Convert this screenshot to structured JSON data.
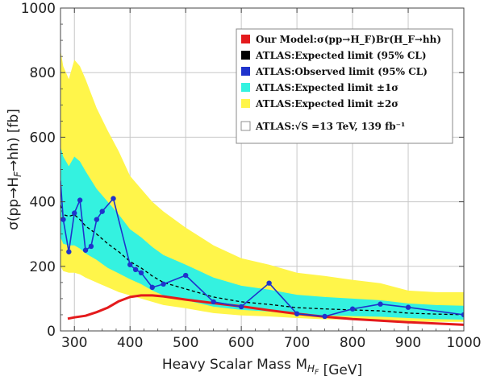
{
  "chart_data": {
    "type": "line",
    "title": "",
    "xlabel": "Heavy Scalar Mass M_{H_F} [GeV]",
    "ylabel": "σ(pp→H_F→hh) [fb]",
    "xlim": [
      275,
      1000
    ],
    "ylim": [
      0,
      1000
    ],
    "xticks": [
      300,
      400,
      500,
      600,
      700,
      800,
      900,
      1000
    ],
    "yticks": [
      0,
      200,
      400,
      600,
      800,
      1000
    ],
    "grid": true,
    "legend_position": "top-right",
    "colors": {
      "model": "#e41a1c",
      "expected": "#000000",
      "observed": "#1f33cc",
      "band1": "#34f2e0",
      "band2": "#fff54a",
      "grid": "#c8c8c8"
    },
    "legend": [
      {
        "swatch": "#e41a1c",
        "label": "Our Model:σ(pp→H_F)Br(H_F→hh)"
      },
      {
        "swatch": "#000000",
        "label": "ATLAS:Expected limit (95% CL)"
      },
      {
        "swatch": "#1f33cc",
        "label": "ATLAS:Observed limit (95% CL)"
      },
      {
        "swatch": "#34f2e0",
        "label": "ATLAS:Expected limit ±1σ"
      },
      {
        "swatch": "#fff54a",
        "label": "ATLAS:Expected limit ±2σ"
      },
      {
        "swatch": "#ffffff",
        "label": "ATLAS:√S =13 TeV, 139 fb⁻¹"
      }
    ],
    "series": [
      {
        "name": "Our Model:σ(pp→H_F)Br(H_F→hh)",
        "style": "solid",
        "x": [
          288,
          300,
          320,
          340,
          360,
          380,
          400,
          420,
          440,
          460,
          500,
          550,
          600,
          650,
          700,
          750,
          800,
          850,
          900,
          950,
          1000
        ],
        "y": [
          38,
          42,
          47,
          58,
          72,
          92,
          105,
          110,
          110,
          107,
          97,
          86,
          76,
          64,
          53,
          44,
          37,
          32,
          27,
          23,
          19
        ]
      },
      {
        "name": "ATLAS:Expected limit (95% CL)",
        "style": "dashed",
        "x": [
          275,
          280,
          290,
          300,
          310,
          320,
          340,
          360,
          380,
          400,
          420,
          440,
          460,
          500,
          550,
          600,
          650,
          700,
          750,
          800,
          850,
          900,
          950,
          1000
        ],
        "y": [
          390,
          360,
          355,
          360,
          345,
          325,
          300,
          270,
          245,
          215,
          195,
          170,
          150,
          130,
          105,
          90,
          82,
          72,
          68,
          65,
          62,
          55,
          52,
          50
        ]
      },
      {
        "name": "ATLAS:Observed limit (95% CL)",
        "style": "solid-markers",
        "x": [
          275,
          280,
          290,
          300,
          310,
          320,
          330,
          340,
          350,
          370,
          400,
          410,
          420,
          440,
          460,
          500,
          550,
          600,
          650,
          700,
          750,
          800,
          850,
          900,
          1000
        ],
        "y": [
          465,
          345,
          245,
          365,
          405,
          250,
          262,
          345,
          370,
          410,
          205,
          190,
          180,
          135,
          145,
          172,
          90,
          75,
          148,
          53,
          45,
          68,
          83,
          73,
          50
        ]
      }
    ],
    "bands": [
      {
        "name": "ATLAS:Expected limit ±2σ",
        "x": [
          275,
          280,
          290,
          300,
          310,
          320,
          340,
          360,
          380,
          400,
          420,
          440,
          460,
          500,
          550,
          600,
          650,
          700,
          750,
          800,
          850,
          900,
          950,
          1000
        ],
        "lower": [
          200,
          185,
          180,
          180,
          175,
          165,
          150,
          135,
          120,
          110,
          100,
          90,
          80,
          70,
          55,
          48,
          45,
          40,
          36,
          35,
          33,
          30,
          28,
          28
        ],
        "upper": [
          870,
          820,
          780,
          840,
          820,
          780,
          690,
          620,
          555,
          480,
          440,
          400,
          370,
          320,
          265,
          225,
          205,
          180,
          170,
          158,
          148,
          125,
          120,
          120
        ]
      },
      {
        "name": "ATLAS:Expected limit ±1σ",
        "x": [
          275,
          280,
          290,
          300,
          310,
          320,
          340,
          360,
          380,
          400,
          420,
          440,
          460,
          500,
          550,
          600,
          650,
          700,
          750,
          800,
          850,
          900,
          950,
          1000
        ],
        "lower": [
          290,
          270,
          265,
          265,
          255,
          240,
          220,
          195,
          178,
          160,
          145,
          125,
          110,
          95,
          75,
          65,
          60,
          52,
          48,
          46,
          44,
          40,
          37,
          35
        ],
        "upper": [
          570,
          540,
          510,
          540,
          525,
          495,
          440,
          400,
          360,
          315,
          290,
          260,
          235,
          205,
          165,
          140,
          128,
          112,
          105,
          100,
          95,
          85,
          80,
          78
        ]
      }
    ]
  }
}
